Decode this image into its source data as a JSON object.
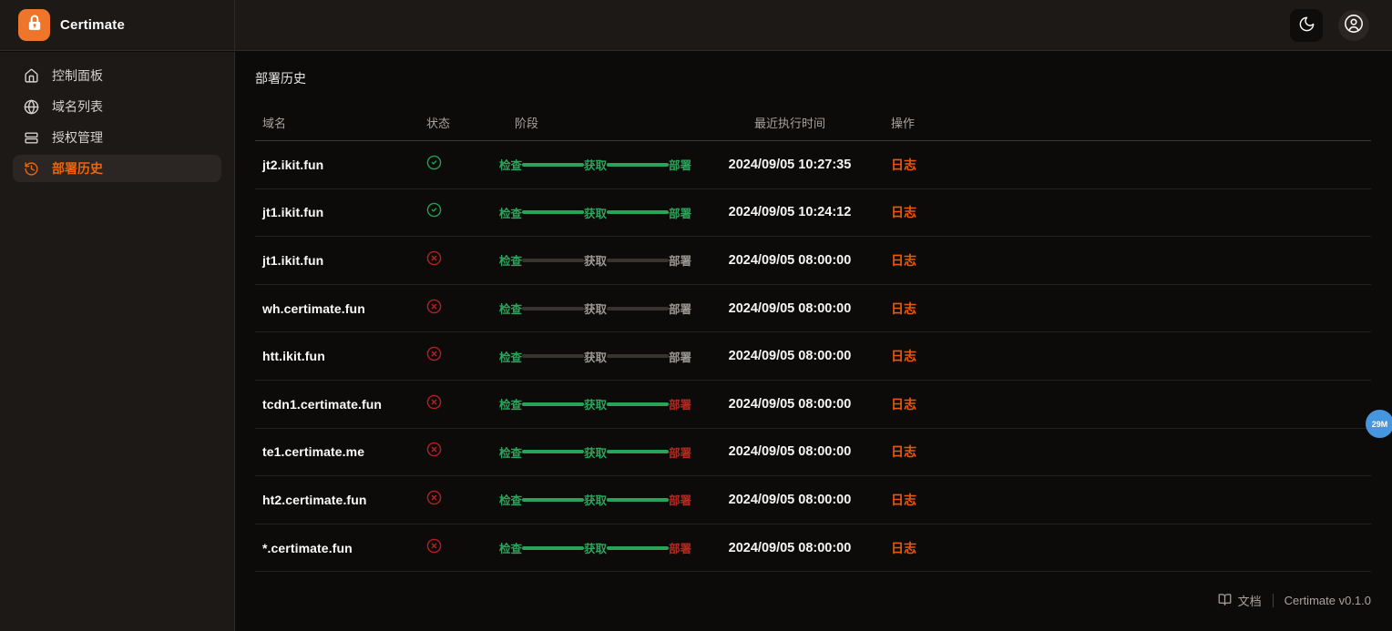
{
  "app": {
    "name": "Certimate"
  },
  "topbar": {
    "theme_toggle_icon": "moon-icon",
    "account_icon": "user-circle-icon"
  },
  "sidebar": {
    "items": [
      {
        "label": "控制面板",
        "icon": "home-icon",
        "active": false
      },
      {
        "label": "域名列表",
        "icon": "globe-icon",
        "active": false
      },
      {
        "label": "授权管理",
        "icon": "rows-icon",
        "active": false
      },
      {
        "label": "部署历史",
        "icon": "history-icon",
        "active": true
      }
    ]
  },
  "main": {
    "title": "部署历史",
    "table": {
      "headers": [
        "域名",
        "状态",
        "阶段",
        "最近执行时间",
        "操作"
      ],
      "stage_labels": [
        "检查",
        "获取",
        "部署"
      ],
      "rows": [
        {
          "domain": "jt2.ikit.fun",
          "status": "success",
          "stage_states": [
            "green",
            "green",
            "green"
          ],
          "line_states": [
            "green",
            "green"
          ],
          "time": "2024/09/05 10:27:35",
          "action": "日志"
        },
        {
          "domain": "jt1.ikit.fun",
          "status": "success",
          "stage_states": [
            "green",
            "green",
            "green"
          ],
          "line_states": [
            "green",
            "green"
          ],
          "time": "2024/09/05 10:24:12",
          "action": "日志"
        },
        {
          "domain": "jt1.ikit.fun",
          "status": "failed",
          "stage_states": [
            "green",
            "gray",
            "gray"
          ],
          "line_states": [
            "gray",
            "gray"
          ],
          "time": "2024/09/05 08:00:00",
          "action": "日志"
        },
        {
          "domain": "wh.certimate.fun",
          "status": "failed",
          "stage_states": [
            "green",
            "gray",
            "gray"
          ],
          "line_states": [
            "gray",
            "gray"
          ],
          "time": "2024/09/05 08:00:00",
          "action": "日志"
        },
        {
          "domain": "htt.ikit.fun",
          "status": "failed",
          "stage_states": [
            "green",
            "gray",
            "gray"
          ],
          "line_states": [
            "gray",
            "gray"
          ],
          "time": "2024/09/05 08:00:00",
          "action": "日志"
        },
        {
          "domain": "tcdn1.certimate.fun",
          "status": "failed",
          "stage_states": [
            "green",
            "green",
            "red"
          ],
          "line_states": [
            "green",
            "green"
          ],
          "time": "2024/09/05 08:00:00",
          "action": "日志"
        },
        {
          "domain": "te1.certimate.me",
          "status": "failed",
          "stage_states": [
            "green",
            "green",
            "red"
          ],
          "line_states": [
            "green",
            "green"
          ],
          "time": "2024/09/05 08:00:00",
          "action": "日志"
        },
        {
          "domain": "ht2.certimate.fun",
          "status": "failed",
          "stage_states": [
            "green",
            "green",
            "red"
          ],
          "line_states": [
            "green",
            "green"
          ],
          "time": "2024/09/05 08:00:00",
          "action": "日志"
        },
        {
          "domain": "*.certimate.fun",
          "status": "failed",
          "stage_states": [
            "green",
            "green",
            "red"
          ],
          "line_states": [
            "green",
            "green"
          ],
          "time": "2024/09/05 08:00:00",
          "action": "日志"
        }
      ]
    }
  },
  "footer": {
    "docs_label": "文档",
    "docs_icon": "book-open-icon",
    "version": "Certimate v0.1.0"
  },
  "overlay": {
    "badge_label": "29M"
  },
  "colors": {
    "accent_orange": "#ea580c",
    "logo_orange": "#ee762b",
    "success_green": "#28a65a",
    "failed_red": "#b32121",
    "stage_gray": "#9b9894",
    "badge_blue": "#4596df",
    "sidebar_bg": "#1c1917",
    "main_bg": "#0d0b0a"
  }
}
